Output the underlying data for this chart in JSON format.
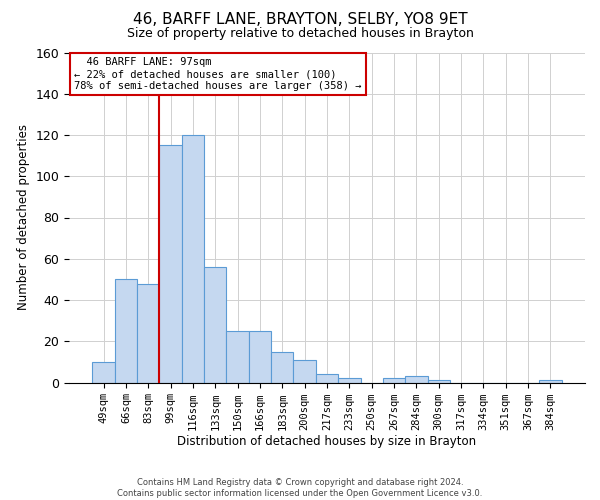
{
  "title": "46, BARFF LANE, BRAYTON, SELBY, YO8 9ET",
  "subtitle": "Size of property relative to detached houses in Brayton",
  "xlabel": "Distribution of detached houses by size in Brayton",
  "ylabel": "Number of detached properties",
  "footer_line1": "Contains HM Land Registry data © Crown copyright and database right 2024.",
  "footer_line2": "Contains public sector information licensed under the Open Government Licence v3.0.",
  "bar_labels": [
    "49sqm",
    "66sqm",
    "83sqm",
    "99sqm",
    "116sqm",
    "133sqm",
    "150sqm",
    "166sqm",
    "183sqm",
    "200sqm",
    "217sqm",
    "233sqm",
    "250sqm",
    "267sqm",
    "284sqm",
    "300sqm",
    "317sqm",
    "334sqm",
    "351sqm",
    "367sqm",
    "384sqm"
  ],
  "bar_values": [
    10,
    50,
    48,
    115,
    120,
    56,
    25,
    25,
    15,
    11,
    4,
    2,
    0,
    2,
    3,
    1,
    0,
    0,
    0,
    0,
    1
  ],
  "bar_color": "#c5d8f0",
  "bar_edgecolor": "#5b9bd5",
  "annotation_title": "46 BARFF LANE: 97sqm",
  "annotation_line1": "← 22% of detached houses are smaller (100)",
  "annotation_line2": "78% of semi-detached houses are larger (358) →",
  "annotation_color": "#cc0000",
  "red_line_bar_index": 2.5,
  "ylim": [
    0,
    160
  ],
  "yticks": [
    0,
    20,
    40,
    60,
    80,
    100,
    120,
    140,
    160
  ],
  "background_color": "#ffffff",
  "grid_color": "#d0d0d0",
  "title_fontsize": 11,
  "subtitle_fontsize": 9,
  "bar_width": 1.0
}
